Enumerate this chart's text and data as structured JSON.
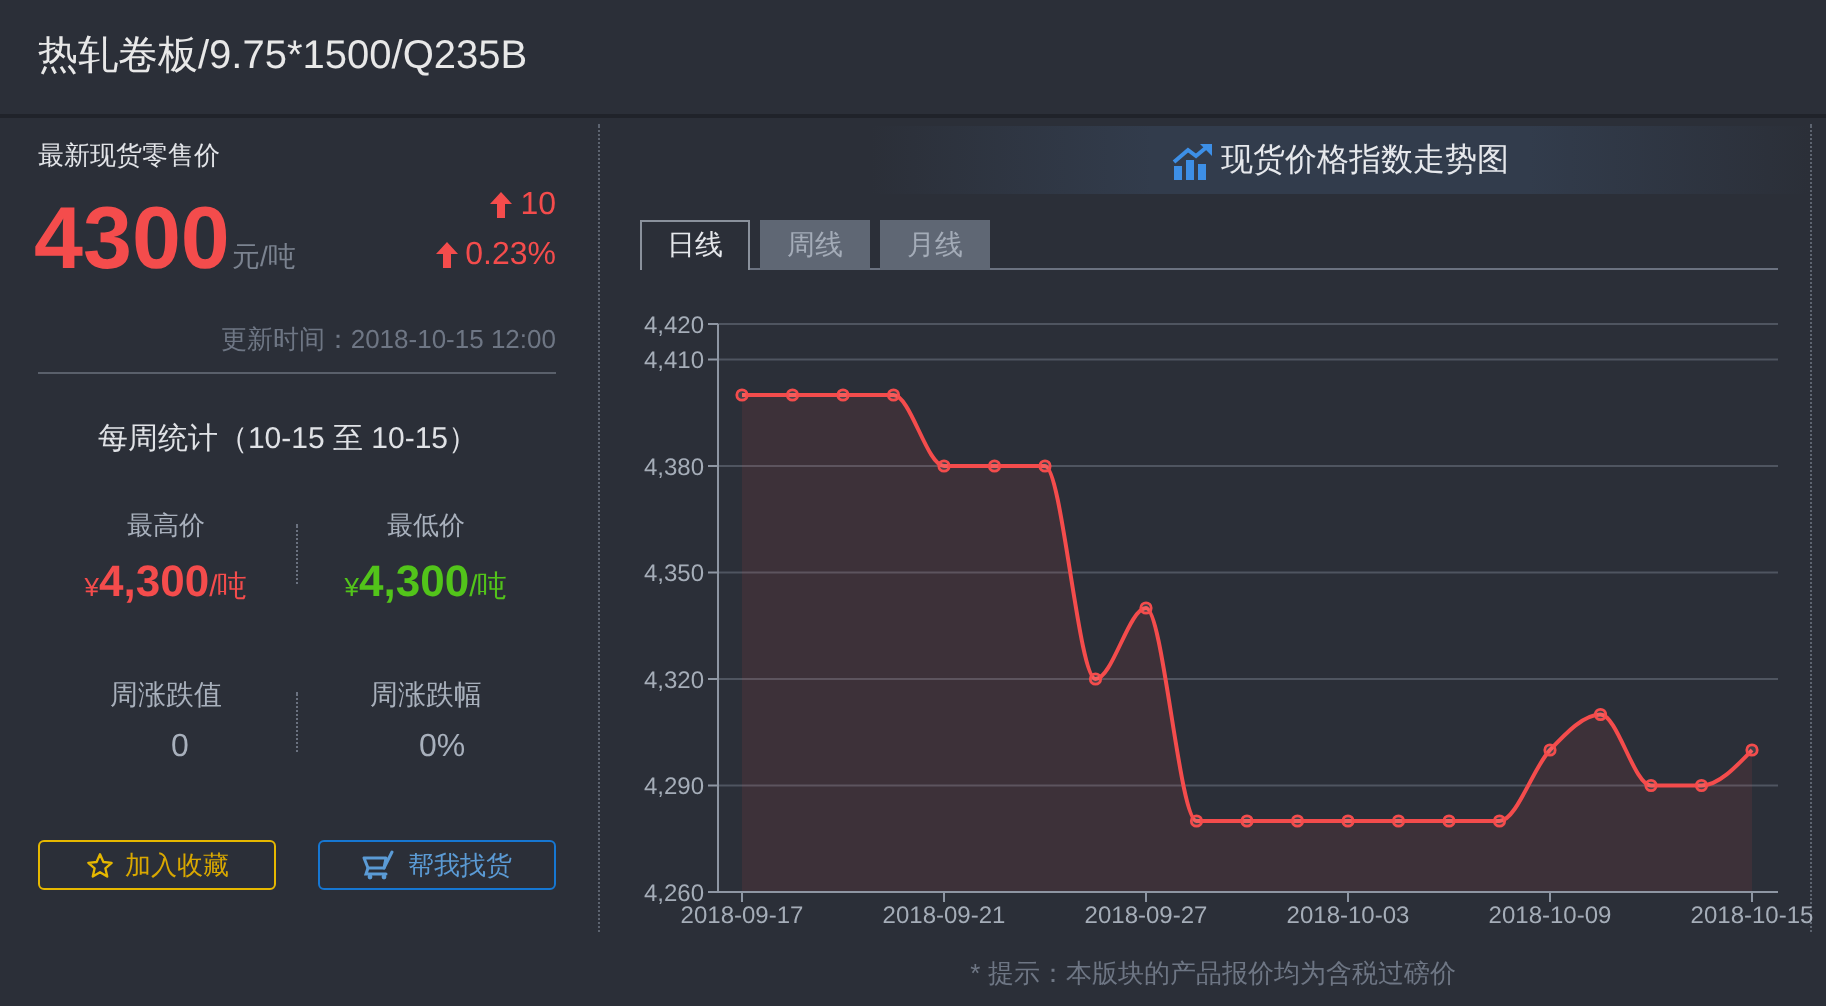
{
  "chart_data": [
    {
      "type": "other",
      "title": "热轧卷板/9.75*1500/Q235B",
      "annotations": [
        "最新现货零售价",
        "4300",
        "元/吨",
        "10",
        "0.23%",
        "更新时间：2018-10-15 12:00",
        "每周统计（10-15 至 10-15）",
        "最高价",
        "¥4,300/吨",
        "最低价",
        "¥4,300/吨",
        "周涨跌值",
        "0",
        "周涨跌幅",
        "0%",
        "加入收藏",
        "帮我找货"
      ]
    },
    {
      "type": "area",
      "title": "现货价格指数走势图",
      "categories": [
        "2018-09-17",
        null,
        null,
        null,
        "2018-09-21",
        null,
        null,
        null,
        "2018-09-27",
        null,
        null,
        null,
        "2018-10-03",
        null,
        null,
        null,
        "2018-10-09",
        null,
        null,
        null,
        "2018-10-15"
      ],
      "values": [
        4400,
        4400,
        4400,
        4400,
        4380,
        4380,
        4380,
        4320,
        4340,
        4280,
        4280,
        4280,
        4280,
        4280,
        4280,
        4280,
        4300,
        4310,
        4290,
        4290,
        4300
      ],
      "color": "#f44c4c",
      "ylim": [
        4260,
        4420
      ],
      "yticks": [
        {
          "value": 4260,
          "label": "4,260"
        },
        {
          "value": 4290,
          "label": "4,290"
        },
        {
          "value": 4320,
          "label": "4,320"
        },
        {
          "value": 4350,
          "label": "4,350"
        },
        {
          "value": 4380,
          "label": "4,380"
        },
        {
          "value": 4410,
          "label": "4,410"
        },
        {
          "value": 4420,
          "label": "4,420"
        }
      ],
      "grid": "y",
      "marker": "circle",
      "annotations": [
        "日线",
        "周线",
        "月线",
        "* 提示：本版块的产品报价均为含税过磅价"
      ]
    }
  ]
}
